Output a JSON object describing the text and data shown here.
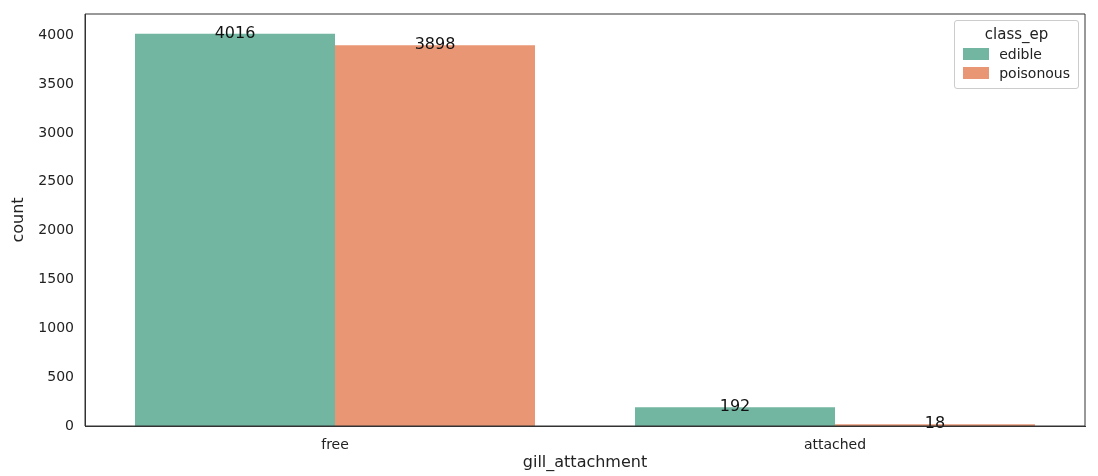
{
  "chart_data": {
    "type": "bar",
    "xlabel": "gill_attachment",
    "ylabel": "count",
    "legend_title": "class_ep",
    "categories": [
      "free",
      "attached"
    ],
    "series": [
      {
        "name": "edible",
        "color": "#72b6a1",
        "values": [
          4016,
          192
        ]
      },
      {
        "name": "poisonous",
        "color": "#e99675",
        "values": [
          3898,
          18
        ]
      }
    ],
    "ylim": [
      0,
      4217
    ],
    "yticks": [
      0,
      500,
      1000,
      1500,
      2000,
      2500,
      3000,
      3500,
      4000
    ],
    "grid": false,
    "legend": "top right",
    "data_labels": true
  }
}
